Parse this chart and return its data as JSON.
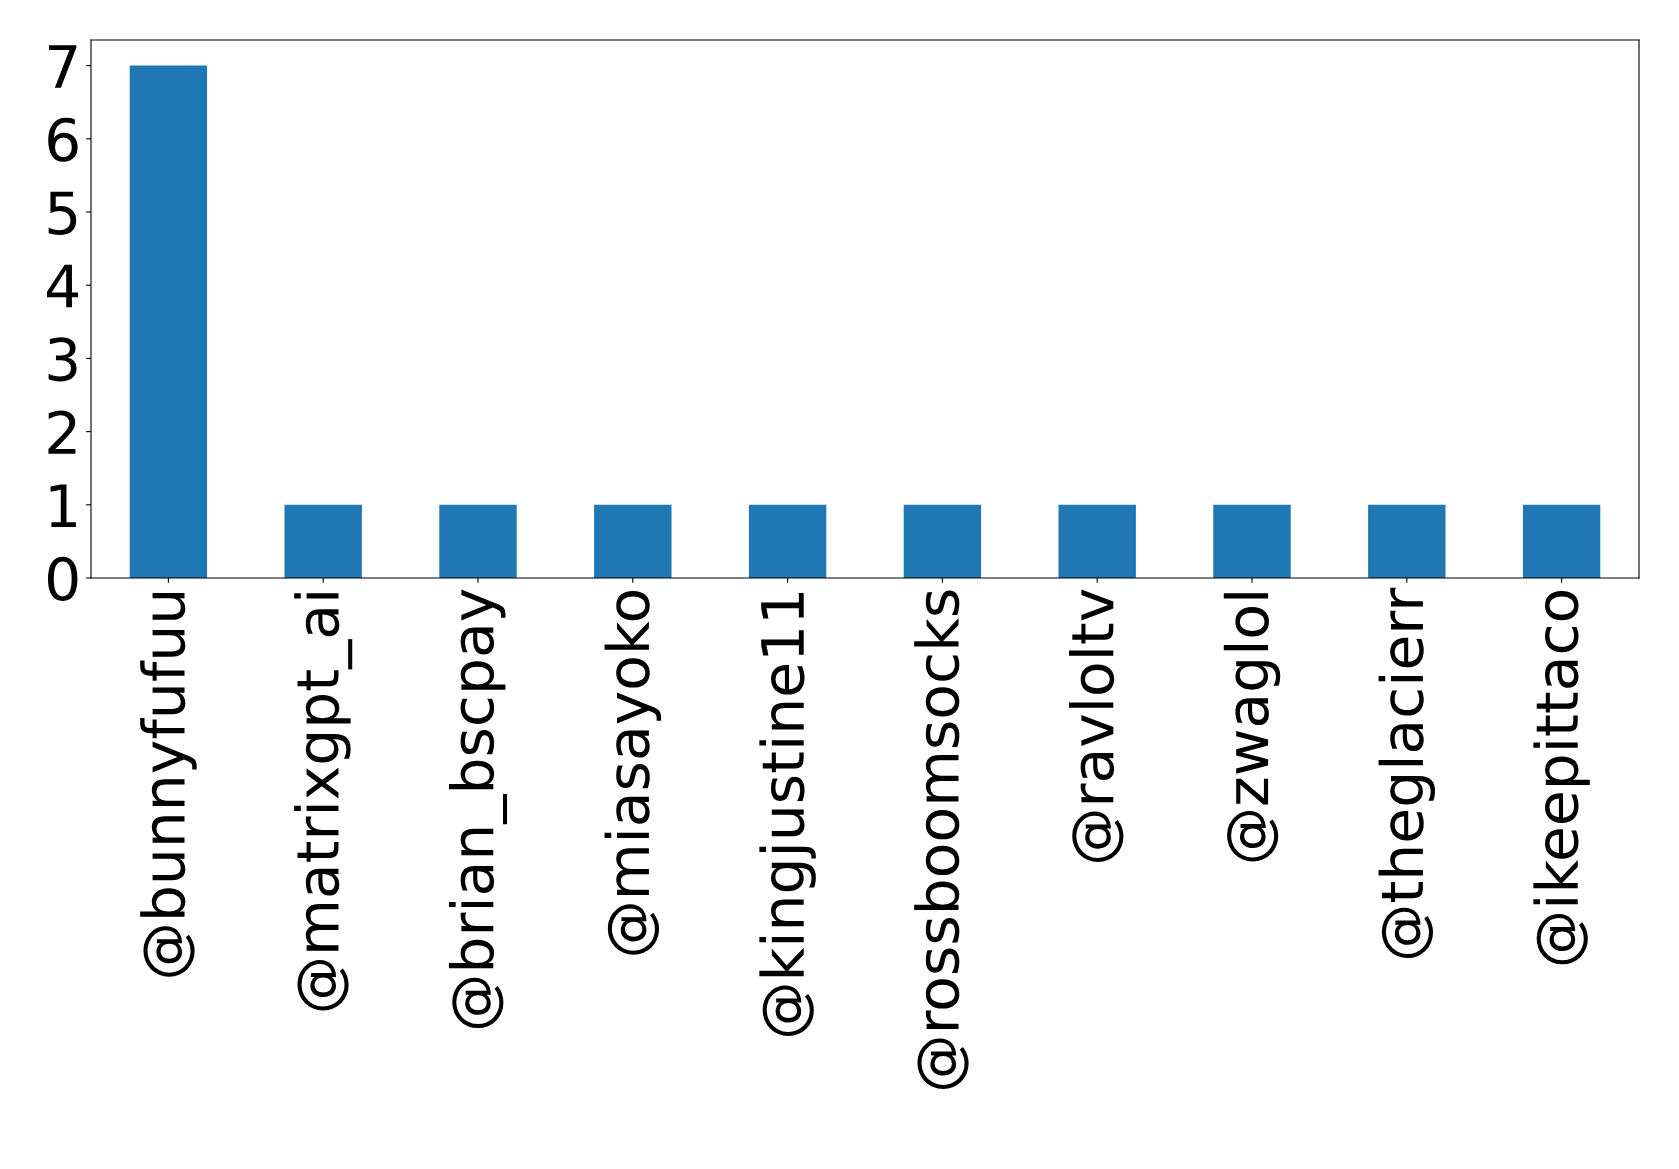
{
  "chart_data": {
    "type": "bar",
    "categories": [
      "@bunnyfufuu",
      "@matrixgpt_ai",
      "@brian_bscpay",
      "@miasayoko",
      "@kingjustine11",
      "@rossboomsocks",
      "@ravloltv",
      "@zwaglol",
      "@theglacierr",
      "@ikeepittaco"
    ],
    "values": [
      7,
      1,
      1,
      1,
      1,
      1,
      1,
      1,
      1,
      1
    ],
    "color": "#1f77b4",
    "ylim": [
      0,
      7.35
    ],
    "yticks": [
      0,
      1,
      2,
      3,
      4,
      5,
      6,
      7
    ],
    "grid": false,
    "legend": false
  }
}
